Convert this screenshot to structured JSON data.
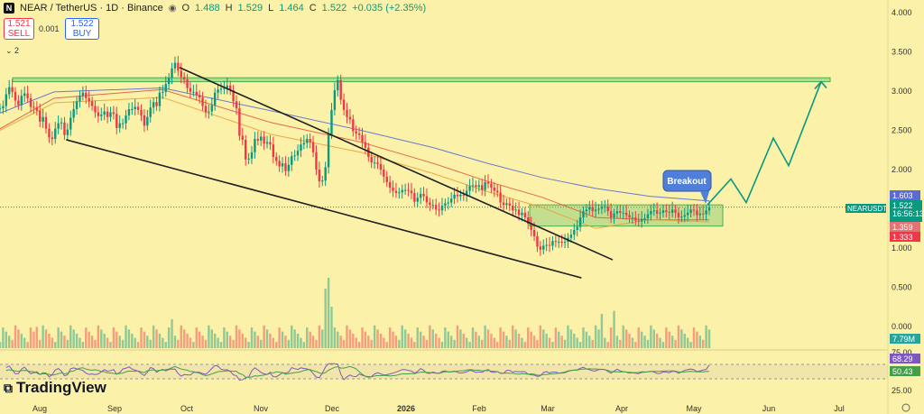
{
  "header": {
    "symbol": "NEAR / TetherUS · 1D · Binance",
    "o_label": "O",
    "o": "1.488",
    "h_label": "H",
    "h": "1.529",
    "l_label": "L",
    "l": "1.464",
    "c_label": "C",
    "c": "1.522",
    "change": "+0.035 (+2.35%)"
  },
  "trade": {
    "sell_price": "1.521",
    "sell_label": "SELL",
    "spread": "0.001",
    "buy_price": "1.522",
    "buy_label": "BUY"
  },
  "indicators_collapsed": "2",
  "brand": "TradingView",
  "annotation": "Breakout",
  "price_axis": [
    "4.000",
    "3.500",
    "3.000",
    "2.500",
    "2.000",
    "1.500",
    "1.000",
    "0.500",
    "0.000"
  ],
  "rsi_axis": [
    "75.00",
    "25.00"
  ],
  "time_axis": [
    "Aug",
    "Sep",
    "Oct",
    "Nov",
    "Dec",
    "2026",
    "Feb",
    "Mar",
    "Apr",
    "May",
    "Jun",
    "Jul"
  ],
  "badges": {
    "ma_long": "1.603",
    "ticker": "NEARUSDT",
    "price": "1.522",
    "countdown": "16:56:13",
    "ma_mid": "1.359",
    "ma_short": "1.333",
    "volume": "7.79M",
    "rsi": "68.29",
    "rsi_ma": "50.43"
  },
  "colors": {
    "background": "#fbf1a9",
    "up": "#089981",
    "down": "#f23645",
    "ma_long": "#5b6bd6",
    "ma_red": "#e05a3c",
    "ma_orange": "#e8a33a",
    "zone": "#7cc86c",
    "projection": "#089981",
    "rsi_line": "#7e57c2",
    "rsi_ma": "#43a047"
  },
  "chart_data": {
    "type": "candlestick",
    "title": "NEAR / TetherUS · 1D · Binance",
    "ylim": [
      0,
      4.0
    ],
    "x_range": [
      "2025-07-25",
      "2026-07-10"
    ],
    "closes": [
      2.78,
      2.81,
      2.96,
      3.05,
      2.99,
      2.88,
      2.82,
      2.94,
      2.97,
      2.91,
      2.8,
      2.79,
      2.75,
      2.61,
      2.67,
      2.52,
      2.41,
      2.39,
      2.52,
      2.59,
      2.6,
      2.44,
      2.51,
      2.66,
      2.77,
      2.87,
      2.94,
      2.98,
      2.91,
      2.87,
      2.81,
      2.73,
      2.68,
      2.7,
      2.74,
      2.67,
      2.73,
      2.71,
      2.53,
      2.59,
      2.59,
      2.69,
      2.77,
      2.77,
      2.8,
      2.76,
      2.69,
      2.56,
      2.67,
      2.79,
      2.86,
      2.81,
      2.98,
      2.99,
      3.09,
      3.17,
      3.29,
      3.36,
      3.26,
      3.18,
      3.15,
      3.04,
      2.99,
      2.99,
      2.95,
      2.92,
      2.81,
      2.73,
      2.74,
      2.82,
      2.98,
      3.02,
      3.03,
      3.04,
      3.07,
      3.01,
      2.87,
      2.78,
      2.43,
      2.38,
      2.13,
      2.14,
      2.22,
      2.39,
      2.37,
      2.42,
      2.33,
      2.35,
      2.32,
      2.16,
      2.11,
      2.04,
      2.08,
      1.98,
      2.06,
      2.17,
      2.18,
      2.24,
      2.32,
      2.34,
      2.39,
      2.35,
      2.22,
      2.0,
      1.85,
      1.86,
      2.03,
      2.45,
      2.76,
      3.01,
      3.14,
      2.89,
      2.76,
      2.67,
      2.64,
      2.49,
      2.46,
      2.44,
      2.35,
      2.28,
      2.16,
      2.09,
      2.09,
      2.07,
      2.0,
      1.91,
      1.84,
      1.77,
      1.73,
      1.7,
      1.71,
      1.74,
      1.74,
      1.73,
      1.7,
      1.59,
      1.64,
      1.69,
      1.66,
      1.58,
      1.55,
      1.55,
      1.49,
      1.48,
      1.54,
      1.57,
      1.58,
      1.63,
      1.68,
      1.66,
      1.68,
      1.67,
      1.73,
      1.79,
      1.8,
      1.78,
      1.8,
      1.74,
      1.84,
      1.82,
      1.77,
      1.73,
      1.71,
      1.58,
      1.55,
      1.57,
      1.54,
      1.48,
      1.49,
      1.42,
      1.45,
      1.39,
      1.31,
      1.23,
      1.15,
      1.02,
      0.98,
      1.03,
      1.04,
      1.03,
      1.09,
      1.08,
      1.08,
      1.07,
      1.08,
      1.13,
      1.17,
      1.23,
      1.27,
      1.39,
      1.47,
      1.49,
      1.52,
      1.47,
      1.49,
      1.5,
      1.53,
      1.53,
      1.47,
      1.39,
      1.44,
      1.47,
      1.45,
      1.45,
      1.42,
      1.39,
      1.39,
      1.35,
      1.34,
      1.37,
      1.38,
      1.43,
      1.47,
      1.48,
      1.44,
      1.45,
      1.48,
      1.46,
      1.45,
      1.49,
      1.45,
      1.39,
      1.4,
      1.42,
      1.45,
      1.49,
      1.48,
      1.42,
      1.44,
      1.43,
      1.48,
      1.52
    ],
    "volume_peaks_M": [
      10.3,
      28.7,
      34.0,
      20.0,
      18.0,
      16.5,
      12.0,
      7.79
    ],
    "moving_averages": [
      {
        "color": "#5b6bd6",
        "values": [
          2.72,
          2.99,
          3.04,
          2.75,
          2.5,
          2.28,
          2.08,
          1.9,
          1.76,
          1.66,
          1.6,
          1.603
        ]
      },
      {
        "color": "#e05a3c",
        "values": [
          2.52,
          2.91,
          3.02,
          2.6,
          2.35,
          2.08,
          1.85,
          1.65,
          1.39,
          1.36,
          1.359
        ]
      },
      {
        "color": "#e8a33a",
        "values": [
          2.5,
          2.85,
          2.92,
          2.45,
          2.22,
          1.95,
          1.72,
          1.52,
          1.25,
          1.36,
          1.333
        ]
      }
    ],
    "resistance_zone": [
      3.12,
      3.17
    ],
    "consolidation_zone": [
      1.28,
      1.55
    ],
    "upper_trendline": [
      [
        3.3,
        "2025-09-28"
      ],
      [
        0.85,
        "2026-03-28"
      ]
    ],
    "lower_trendline": [
      [
        2.38,
        "2025-08-12"
      ],
      [
        0.62,
        "2026-03-15"
      ]
    ],
    "projection_path": [
      1.55,
      1.88,
      1.58,
      2.4,
      2.05,
      3.12
    ],
    "rsi": {
      "ylim": [
        0,
        100
      ],
      "overbought": 70,
      "oversold": 30,
      "last_rsi": 68.29,
      "last_rsi_ma": 50.43
    }
  }
}
